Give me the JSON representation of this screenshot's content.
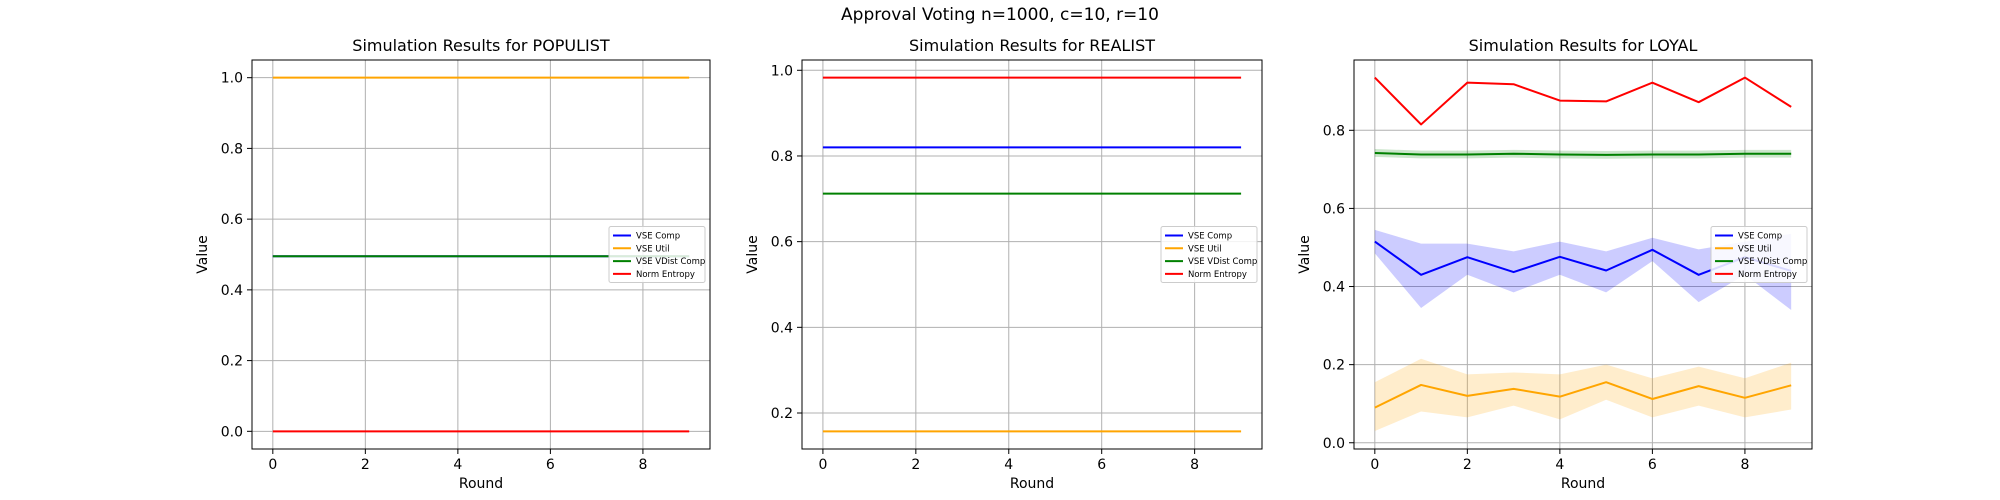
{
  "figure": {
    "title": "Approval Voting n=1000, c=10, r=10"
  },
  "colors": {
    "VSE Comp": "#0000ff",
    "VSE Util": "#ffa500",
    "VSE VDist Comp": "#008000",
    "Norm Entropy": "#ff0000"
  },
  "chart_data": [
    {
      "type": "line",
      "title": "Simulation Results for POPULIST",
      "xlabel": "Round",
      "ylabel": "Value",
      "xlim": [
        -0.45,
        9.45
      ],
      "ylim": [
        -0.05,
        1.05
      ],
      "xticks": [
        0,
        2,
        4,
        6,
        8
      ],
      "yticks": [
        0.0,
        0.2,
        0.4,
        0.6,
        0.8,
        1.0
      ],
      "ytick_labels": [
        "0.0",
        "0.2",
        "0.4",
        "0.6",
        "0.8",
        "1.0"
      ],
      "grid": true,
      "legend": "center right",
      "x": [
        0,
        1,
        2,
        3,
        4,
        5,
        6,
        7,
        8,
        9
      ],
      "series": [
        {
          "name": "VSE Comp",
          "values": [
            0.495,
            0.495,
            0.495,
            0.495,
            0.495,
            0.495,
            0.495,
            0.495,
            0.495,
            0.495
          ]
        },
        {
          "name": "VSE Util",
          "values": [
            1.0,
            1.0,
            1.0,
            1.0,
            1.0,
            1.0,
            1.0,
            1.0,
            1.0,
            1.0
          ]
        },
        {
          "name": "VSE VDist Comp",
          "values": [
            0.495,
            0.495,
            0.495,
            0.495,
            0.495,
            0.495,
            0.495,
            0.495,
            0.495,
            0.495
          ]
        },
        {
          "name": "Norm Entropy",
          "values": [
            0.0,
            0.0,
            0.0,
            0.0,
            0.0,
            0.0,
            0.0,
            0.0,
            0.0,
            0.0
          ]
        }
      ]
    },
    {
      "type": "line",
      "title": "Simulation Results for REALIST",
      "xlabel": "Round",
      "ylabel": "Value",
      "xlim": [
        -0.45,
        9.45
      ],
      "ylim": [
        0.116,
        1.024
      ],
      "xticks": [
        0,
        2,
        4,
        6,
        8
      ],
      "yticks": [
        0.2,
        0.4,
        0.6,
        0.8,
        1.0
      ],
      "ytick_labels": [
        "0.2",
        "0.4",
        "0.6",
        "0.8",
        "1.0"
      ],
      "grid": true,
      "legend": "center right",
      "x": [
        0,
        1,
        2,
        3,
        4,
        5,
        6,
        7,
        8,
        9
      ],
      "series": [
        {
          "name": "VSE Comp",
          "values": [
            0.82,
            0.82,
            0.82,
            0.82,
            0.82,
            0.82,
            0.82,
            0.82,
            0.82,
            0.82
          ]
        },
        {
          "name": "VSE Util",
          "values": [
            0.157,
            0.157,
            0.157,
            0.157,
            0.157,
            0.157,
            0.157,
            0.157,
            0.157,
            0.157
          ]
        },
        {
          "name": "VSE VDist Comp",
          "values": [
            0.712,
            0.712,
            0.712,
            0.712,
            0.712,
            0.712,
            0.712,
            0.712,
            0.712,
            0.712
          ]
        },
        {
          "name": "Norm Entropy",
          "values": [
            0.983,
            0.983,
            0.983,
            0.983,
            0.983,
            0.983,
            0.983,
            0.983,
            0.983,
            0.983
          ]
        }
      ]
    },
    {
      "type": "line",
      "title": "Simulation Results for LOYAL",
      "xlabel": "Round",
      "ylabel": "Value",
      "xlim": [
        -0.45,
        9.45
      ],
      "ylim": [
        -0.016,
        0.98
      ],
      "xticks": [
        0,
        2,
        4,
        6,
        8
      ],
      "yticks": [
        0.0,
        0.2,
        0.4,
        0.6,
        0.8
      ],
      "ytick_labels": [
        "0.0",
        "0.2",
        "0.4",
        "0.6",
        "0.8"
      ],
      "grid": true,
      "legend": "center right",
      "x": [
        0,
        1,
        2,
        3,
        4,
        5,
        6,
        7,
        8,
        9
      ],
      "series": [
        {
          "name": "VSE Comp",
          "values": [
            0.515,
            0.43,
            0.475,
            0.437,
            0.476,
            0.441,
            0.494,
            0.43,
            0.475,
            0.44
          ],
          "band_lower": [
            0.485,
            0.345,
            0.43,
            0.385,
            0.43,
            0.385,
            0.465,
            0.36,
            0.43,
            0.34
          ],
          "band_upper": [
            0.545,
            0.51,
            0.51,
            0.49,
            0.515,
            0.49,
            0.525,
            0.495,
            0.515,
            0.535
          ]
        },
        {
          "name": "VSE Util",
          "values": [
            0.09,
            0.148,
            0.12,
            0.138,
            0.118,
            0.155,
            0.112,
            0.145,
            0.115,
            0.147
          ],
          "band_lower": [
            0.03,
            0.08,
            0.065,
            0.095,
            0.06,
            0.11,
            0.065,
            0.095,
            0.065,
            0.085
          ],
          "band_upper": [
            0.155,
            0.215,
            0.175,
            0.18,
            0.175,
            0.2,
            0.165,
            0.195,
            0.165,
            0.205
          ]
        },
        {
          "name": "VSE VDist Comp",
          "values": [
            0.742,
            0.738,
            0.738,
            0.74,
            0.738,
            0.737,
            0.738,
            0.738,
            0.74,
            0.74
          ],
          "band_lower": [
            0.732,
            0.728,
            0.728,
            0.73,
            0.728,
            0.727,
            0.728,
            0.728,
            0.73,
            0.73
          ],
          "band_upper": [
            0.752,
            0.748,
            0.748,
            0.75,
            0.748,
            0.747,
            0.748,
            0.748,
            0.75,
            0.75
          ]
        },
        {
          "name": "Norm Entropy",
          "values": [
            0.935,
            0.815,
            0.922,
            0.918,
            0.876,
            0.874,
            0.922,
            0.872,
            0.935,
            0.86
          ]
        }
      ]
    }
  ]
}
